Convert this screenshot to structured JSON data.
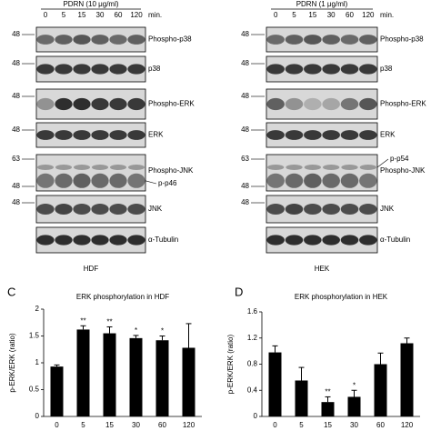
{
  "blots": [
    {
      "header": "PDRN (10 μg/ml)",
      "times": [
        "0",
        "5",
        "15",
        "30",
        "60",
        "120"
      ],
      "unit": "min.",
      "cell": "HDF",
      "rows": [
        {
          "label": "Phospho-p38",
          "markers": [
            "48"
          ]
        },
        {
          "label": "p38",
          "markers": [
            "48"
          ]
        },
        {
          "label": "Phospho-ERK",
          "markers": [
            "48"
          ]
        },
        {
          "label": "ERK",
          "markers": [
            "48"
          ]
        },
        {
          "label": "Phospho-JNK",
          "sublabel": "p-p46",
          "markers": [
            "63",
            "48"
          ]
        },
        {
          "label": "JNK",
          "markers": [
            "48"
          ]
        },
        {
          "label": "α-Tubulin",
          "markers": []
        }
      ]
    },
    {
      "header": "PDRN (1 μg/ml)",
      "times": [
        "0",
        "5",
        "15",
        "30",
        "60",
        "120"
      ],
      "unit": "min.",
      "cell": "HEK",
      "rows": [
        {
          "label": "Phospho-p38",
          "markers": [
            "48"
          ]
        },
        {
          "label": "p38",
          "markers": [
            "48"
          ]
        },
        {
          "label": "Phospho-ERK",
          "markers": [
            "48"
          ]
        },
        {
          "label": "ERK",
          "markers": [
            "48"
          ]
        },
        {
          "label": "Phospho-JNK",
          "sublabel": "p-p54",
          "markers": [
            "63",
            "48"
          ]
        },
        {
          "label": "JNK",
          "markers": [
            "48"
          ]
        },
        {
          "label": "α-Tubulin",
          "markers": []
        }
      ]
    }
  ],
  "chart_data": [
    {
      "type": "bar",
      "panel": "C",
      "title": "ERK phosphorylation in HDF",
      "y_label": "p-ERK/ERK (ratio)",
      "categories": [
        "0",
        "5",
        "15",
        "30",
        "60",
        "120"
      ],
      "values": [
        0.93,
        1.62,
        1.55,
        1.46,
        1.42,
        1.28
      ],
      "errors": [
        0.03,
        0.07,
        0.12,
        0.05,
        0.08,
        0.45
      ],
      "significance": [
        null,
        "**",
        "**",
        "*",
        "*",
        null
      ],
      "color": "#000000",
      "ylim": [
        0,
        2
      ],
      "yticks": [
        0,
        0.5,
        1,
        1.5,
        2
      ]
    },
    {
      "type": "bar",
      "panel": "D",
      "title": "ERK phosphorylation in HEK",
      "y_label": "p-ERK/ERK (ratio)",
      "categories": [
        "0",
        "5",
        "15",
        "30",
        "60",
        "120"
      ],
      "values": [
        0.98,
        0.55,
        0.22,
        0.3,
        0.8,
        1.12
      ],
      "errors": [
        0.1,
        0.2,
        0.08,
        0.1,
        0.17,
        0.08
      ],
      "significance": [
        null,
        null,
        "**",
        "*",
        null,
        null
      ],
      "color": "#000000",
      "ylim": [
        0,
        1.6
      ],
      "yticks": [
        0,
        0.4,
        0.8,
        1.2,
        1.6
      ]
    }
  ]
}
